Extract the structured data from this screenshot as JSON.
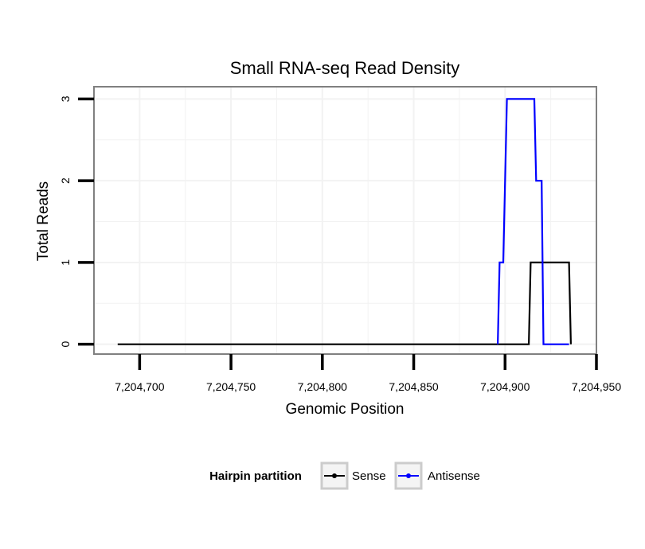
{
  "chart_data": {
    "type": "line",
    "title": "Small RNA-seq Read Density",
    "xlabel": "Genomic Position",
    "ylabel": "Total Reads",
    "xlim": [
      7204675,
      7204950
    ],
    "ylim": [
      -0.12,
      3.15
    ],
    "x_ticks": [
      7204700,
      7204750,
      7204800,
      7204850,
      7204900,
      7204950
    ],
    "x_tick_labels": [
      "7,204,700",
      "7,204,750",
      "7,204,800",
      "7,204,850",
      "7,204,900",
      "7,204,950"
    ],
    "y_ticks": [
      0,
      1,
      2,
      3
    ],
    "y_tick_labels": [
      "0",
      "1",
      "2",
      "3"
    ],
    "grid": true,
    "legend": {
      "title": "Hairpin partition",
      "position": "bottom"
    },
    "series": [
      {
        "name": "Sense",
        "color": "#000000",
        "x": [
          7204688,
          7204913,
          7204914,
          7204935,
          7204936
        ],
        "y": [
          0,
          0,
          1,
          1,
          0
        ]
      },
      {
        "name": "Antisense",
        "color": "#0000ff",
        "x": [
          7204896,
          7204897,
          7204899,
          7204901,
          7204916,
          7204917,
          7204920,
          7204921,
          7204935
        ],
        "y": [
          0,
          1,
          1,
          3,
          3,
          2,
          2,
          0,
          0
        ]
      }
    ]
  }
}
